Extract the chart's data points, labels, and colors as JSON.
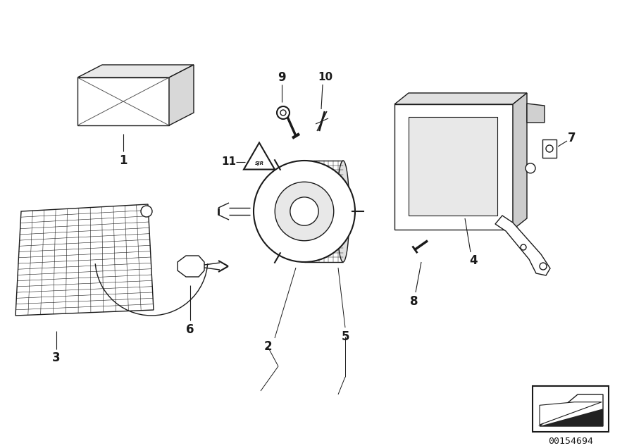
{
  "bg_color": "#ffffff",
  "lc": "#1a1a1a",
  "diagram_id": "00154694",
  "fig_width": 9.0,
  "fig_height": 6.36,
  "dpi": 100
}
